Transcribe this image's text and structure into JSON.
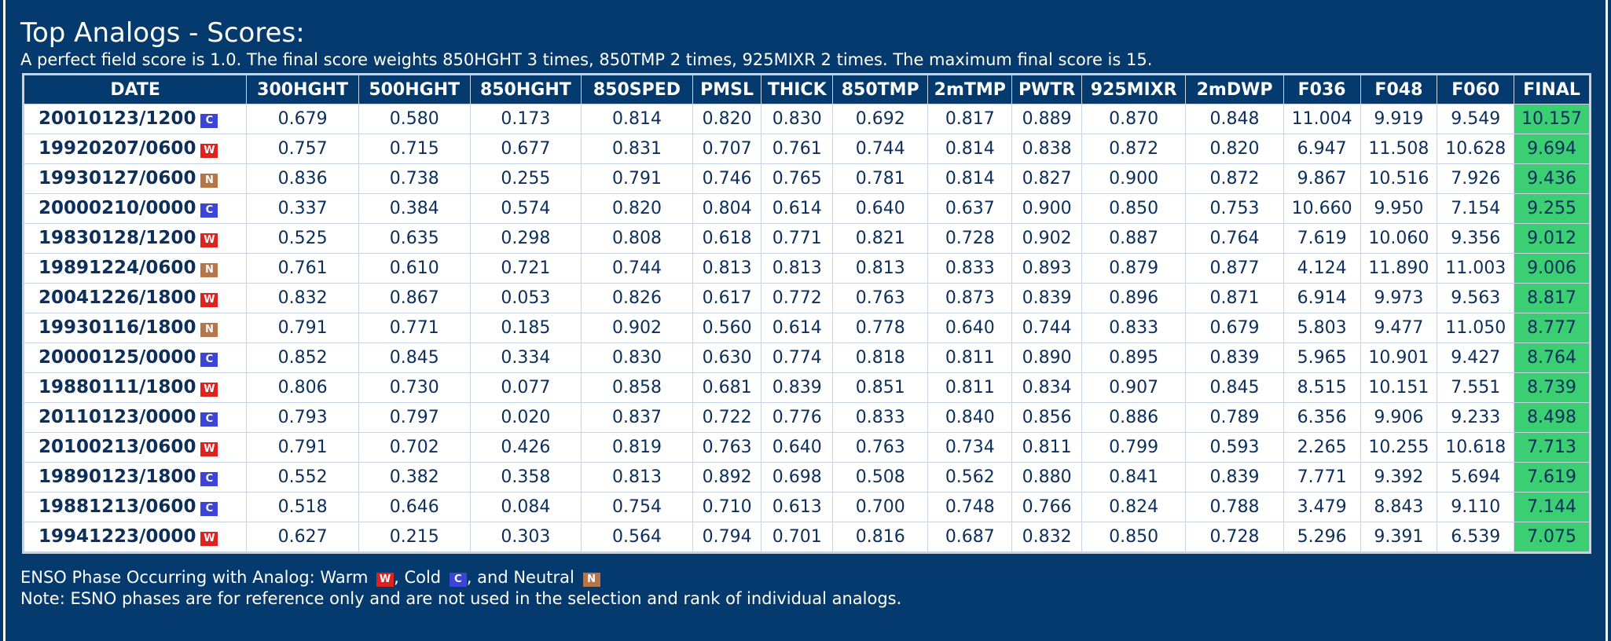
{
  "title": "Top Analogs - Scores:",
  "subtitle": "A perfect field score is 1.0. The final score weights 850HGHT 3 times, 850TMP 2 times, 925MIXR 2 times. The maximum final score is 15.",
  "colors": {
    "warm": "#e0221e",
    "cold": "#3d45d6",
    "neutral": "#b7764a",
    "final_highlight": "#3bce72",
    "background": "#053a6e"
  },
  "phases": {
    "W": {
      "letter": "W",
      "icon": "warm-phase-icon"
    },
    "C": {
      "letter": "C",
      "icon": "cold-phase-icon"
    },
    "N": {
      "letter": "N",
      "icon": "neutral-phase-icon"
    }
  },
  "table": {
    "headers": [
      "DATE",
      "300HGHT",
      "500HGHT",
      "850HGHT",
      "850SPED",
      "PMSL",
      "THICK",
      "850TMP",
      "2mTMP",
      "PWTR",
      "925MIXR",
      "2mDWP",
      "F036",
      "F048",
      "F060",
      "FINAL"
    ],
    "rows": [
      {
        "date": "20010123/1200",
        "phase": "C",
        "values": [
          "0.679",
          "0.580",
          "0.173",
          "0.814",
          "0.820",
          "0.830",
          "0.692",
          "0.817",
          "0.889",
          "0.870",
          "0.848",
          "11.004",
          "9.919",
          "9.549",
          "10.157"
        ]
      },
      {
        "date": "19920207/0600",
        "phase": "W",
        "values": [
          "0.757",
          "0.715",
          "0.677",
          "0.831",
          "0.707",
          "0.761",
          "0.744",
          "0.814",
          "0.838",
          "0.872",
          "0.820",
          "6.947",
          "11.508",
          "10.628",
          "9.694"
        ]
      },
      {
        "date": "19930127/0600",
        "phase": "N",
        "values": [
          "0.836",
          "0.738",
          "0.255",
          "0.791",
          "0.746",
          "0.765",
          "0.781",
          "0.814",
          "0.827",
          "0.900",
          "0.872",
          "9.867",
          "10.516",
          "7.926",
          "9.436"
        ]
      },
      {
        "date": "20000210/0000",
        "phase": "C",
        "values": [
          "0.337",
          "0.384",
          "0.574",
          "0.820",
          "0.804",
          "0.614",
          "0.640",
          "0.637",
          "0.900",
          "0.850",
          "0.753",
          "10.660",
          "9.950",
          "7.154",
          "9.255"
        ]
      },
      {
        "date": "19830128/1200",
        "phase": "W",
        "values": [
          "0.525",
          "0.635",
          "0.298",
          "0.808",
          "0.618",
          "0.771",
          "0.821",
          "0.728",
          "0.902",
          "0.887",
          "0.764",
          "7.619",
          "10.060",
          "9.356",
          "9.012"
        ]
      },
      {
        "date": "19891224/0600",
        "phase": "N",
        "values": [
          "0.761",
          "0.610",
          "0.721",
          "0.744",
          "0.813",
          "0.813",
          "0.813",
          "0.833",
          "0.893",
          "0.879",
          "0.877",
          "4.124",
          "11.890",
          "11.003",
          "9.006"
        ]
      },
      {
        "date": "20041226/1800",
        "phase": "W",
        "values": [
          "0.832",
          "0.867",
          "0.053",
          "0.826",
          "0.617",
          "0.772",
          "0.763",
          "0.873",
          "0.839",
          "0.896",
          "0.871",
          "6.914",
          "9.973",
          "9.563",
          "8.817"
        ]
      },
      {
        "date": "19930116/1800",
        "phase": "N",
        "values": [
          "0.791",
          "0.771",
          "0.185",
          "0.902",
          "0.560",
          "0.614",
          "0.778",
          "0.640",
          "0.744",
          "0.833",
          "0.679",
          "5.803",
          "9.477",
          "11.050",
          "8.777"
        ]
      },
      {
        "date": "20000125/0000",
        "phase": "C",
        "values": [
          "0.852",
          "0.845",
          "0.334",
          "0.830",
          "0.630",
          "0.774",
          "0.818",
          "0.811",
          "0.890",
          "0.895",
          "0.839",
          "5.965",
          "10.901",
          "9.427",
          "8.764"
        ]
      },
      {
        "date": "19880111/1800",
        "phase": "W",
        "values": [
          "0.806",
          "0.730",
          "0.077",
          "0.858",
          "0.681",
          "0.839",
          "0.851",
          "0.811",
          "0.834",
          "0.907",
          "0.845",
          "8.515",
          "10.151",
          "7.551",
          "8.739"
        ]
      },
      {
        "date": "20110123/0000",
        "phase": "C",
        "values": [
          "0.793",
          "0.797",
          "0.020",
          "0.837",
          "0.722",
          "0.776",
          "0.833",
          "0.840",
          "0.856",
          "0.886",
          "0.789",
          "6.356",
          "9.906",
          "9.233",
          "8.498"
        ]
      },
      {
        "date": "20100213/0600",
        "phase": "W",
        "values": [
          "0.791",
          "0.702",
          "0.426",
          "0.819",
          "0.763",
          "0.640",
          "0.763",
          "0.734",
          "0.811",
          "0.799",
          "0.593",
          "2.265",
          "10.255",
          "10.618",
          "7.713"
        ]
      },
      {
        "date": "19890123/1800",
        "phase": "C",
        "values": [
          "0.552",
          "0.382",
          "0.358",
          "0.813",
          "0.892",
          "0.698",
          "0.508",
          "0.562",
          "0.880",
          "0.841",
          "0.839",
          "7.771",
          "9.392",
          "5.694",
          "7.619"
        ]
      },
      {
        "date": "19881213/0600",
        "phase": "C",
        "values": [
          "0.518",
          "0.646",
          "0.084",
          "0.754",
          "0.710",
          "0.613",
          "0.700",
          "0.748",
          "0.766",
          "0.824",
          "0.788",
          "3.479",
          "8.843",
          "9.110",
          "7.144"
        ]
      },
      {
        "date": "19941223/0000",
        "phase": "W",
        "values": [
          "0.627",
          "0.215",
          "0.303",
          "0.564",
          "0.794",
          "0.701",
          "0.816",
          "0.687",
          "0.832",
          "0.850",
          "0.728",
          "5.296",
          "9.391",
          "6.539",
          "7.075"
        ]
      }
    ]
  },
  "legend": {
    "intro": "ENSO Phase Occurring with Analog: Warm ",
    "sep1": ", Cold ",
    "sep2": ", and Neutral ",
    "note": "Note: ESNO phases are for reference only and are not used in the selection and rank of individual analogs."
  }
}
